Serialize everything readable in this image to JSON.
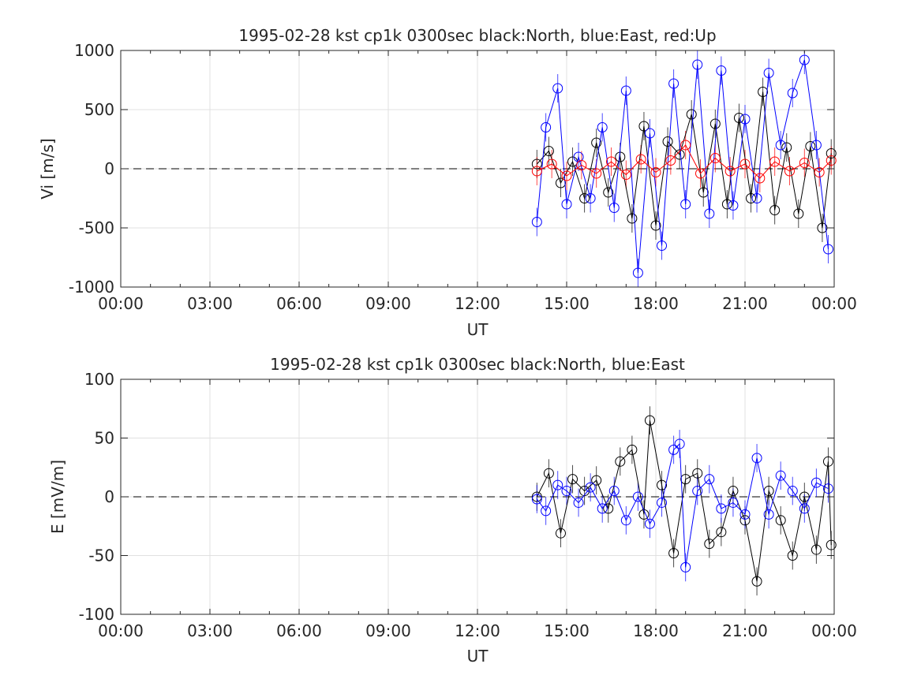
{
  "chart_data": [
    {
      "type": "scatter",
      "title": "1995-02-28 kst cp1k 0300sec black:North, blue:East, red:Up",
      "xlabel": "UT",
      "ylabel": "Vi [m/s]",
      "xlim": [
        0,
        24
      ],
      "ylim": [
        -1000,
        1000
      ],
      "xticklabels": [
        "00:00",
        "03:00",
        "06:00",
        "09:00",
        "12:00",
        "15:00",
        "18:00",
        "21:00",
        "00:00"
      ],
      "yticks": [
        -1000,
        -500,
        0,
        500,
        1000
      ],
      "yticklabels": [
        "-1000",
        "-500",
        "0",
        "500",
        "1000"
      ],
      "grid": true,
      "zero_line": "dashed",
      "series": [
        {
          "name": "North",
          "color": "#000000",
          "x": [
            14.0,
            14.4,
            14.8,
            15.2,
            15.6,
            16.0,
            16.4,
            16.8,
            17.2,
            17.6,
            18.0,
            18.4,
            18.8,
            19.2,
            19.6,
            20.0,
            20.4,
            20.8,
            21.2,
            21.6,
            22.0,
            22.4,
            22.8,
            23.2,
            23.6,
            23.9
          ],
          "y": [
            40,
            150,
            -120,
            60,
            -250,
            220,
            -200,
            100,
            -420,
            360,
            -480,
            230,
            120,
            460,
            -200,
            380,
            -300,
            430,
            -250,
            650,
            -350,
            180,
            -380,
            190,
            -500,
            130
          ]
        },
        {
          "name": "East",
          "color": "#0000ff",
          "x": [
            14.0,
            14.3,
            14.7,
            15.0,
            15.4,
            15.8,
            16.2,
            16.6,
            17.0,
            17.4,
            17.8,
            18.2,
            18.6,
            19.0,
            19.4,
            19.8,
            20.2,
            20.6,
            21.0,
            21.4,
            21.8,
            22.2,
            22.6,
            23.0,
            23.4,
            23.8
          ],
          "y": [
            -450,
            350,
            680,
            -300,
            100,
            -250,
            350,
            -330,
            660,
            -880,
            300,
            -650,
            720,
            -300,
            880,
            -380,
            830,
            -310,
            420,
            -250,
            810,
            200,
            640,
            920,
            200,
            -680
          ]
        },
        {
          "name": "Up",
          "color": "#ff0000",
          "x": [
            14.0,
            14.5,
            15.0,
            15.5,
            16.0,
            16.5,
            17.0,
            17.5,
            18.0,
            18.5,
            19.0,
            19.5,
            20.0,
            20.5,
            21.0,
            21.5,
            22.0,
            22.5,
            23.0,
            23.5,
            23.9
          ],
          "y": [
            -20,
            40,
            -60,
            30,
            -40,
            60,
            -50,
            80,
            -30,
            70,
            200,
            -40,
            90,
            -20,
            40,
            -80,
            60,
            -20,
            50,
            -30,
            70
          ]
        }
      ]
    },
    {
      "type": "scatter",
      "title": "1995-02-28 kst cp1k 0300sec black:North, blue:East",
      "xlabel": "UT",
      "ylabel": "E [mV/m]",
      "xlim": [
        0,
        24
      ],
      "ylim": [
        -100,
        100
      ],
      "xticklabels": [
        "00:00",
        "03:00",
        "06:00",
        "09:00",
        "12:00",
        "15:00",
        "18:00",
        "21:00",
        "00:00"
      ],
      "yticks": [
        -100,
        -50,
        0,
        50,
        100
      ],
      "yticklabels": [
        "-100",
        "-50",
        "0",
        "50",
        "100"
      ],
      "grid": true,
      "zero_line": "dashed",
      "series": [
        {
          "name": "North",
          "color": "#000000",
          "x": [
            14.0,
            14.4,
            14.8,
            15.2,
            15.6,
            16.0,
            16.4,
            16.8,
            17.2,
            17.6,
            17.8,
            18.2,
            18.6,
            19.0,
            19.4,
            19.8,
            20.2,
            20.6,
            21.0,
            21.4,
            21.8,
            22.2,
            22.6,
            23.0,
            23.4,
            23.8,
            23.9
          ],
          "y": [
            0,
            20,
            -31,
            15,
            5,
            14,
            -10,
            30,
            40,
            -15,
            65,
            10,
            -48,
            15,
            20,
            -40,
            -30,
            5,
            -20,
            -72,
            5,
            -20,
            -50,
            0,
            -45,
            30,
            -41
          ]
        },
        {
          "name": "East",
          "color": "#0000ff",
          "x": [
            14.0,
            14.3,
            14.7,
            15.0,
            15.4,
            15.8,
            16.2,
            16.6,
            17.0,
            17.4,
            17.8,
            18.2,
            18.6,
            18.8,
            19.0,
            19.4,
            19.8,
            20.2,
            20.6,
            21.0,
            21.4,
            21.8,
            22.2,
            22.6,
            23.0,
            23.4,
            23.8
          ],
          "y": [
            -2,
            -12,
            10,
            5,
            -5,
            8,
            -10,
            5,
            -20,
            0,
            -23,
            -5,
            40,
            45,
            -60,
            5,
            15,
            -10,
            -5,
            -15,
            33,
            -15,
            18,
            5,
            -10,
            12,
            7
          ]
        }
      ]
    }
  ]
}
